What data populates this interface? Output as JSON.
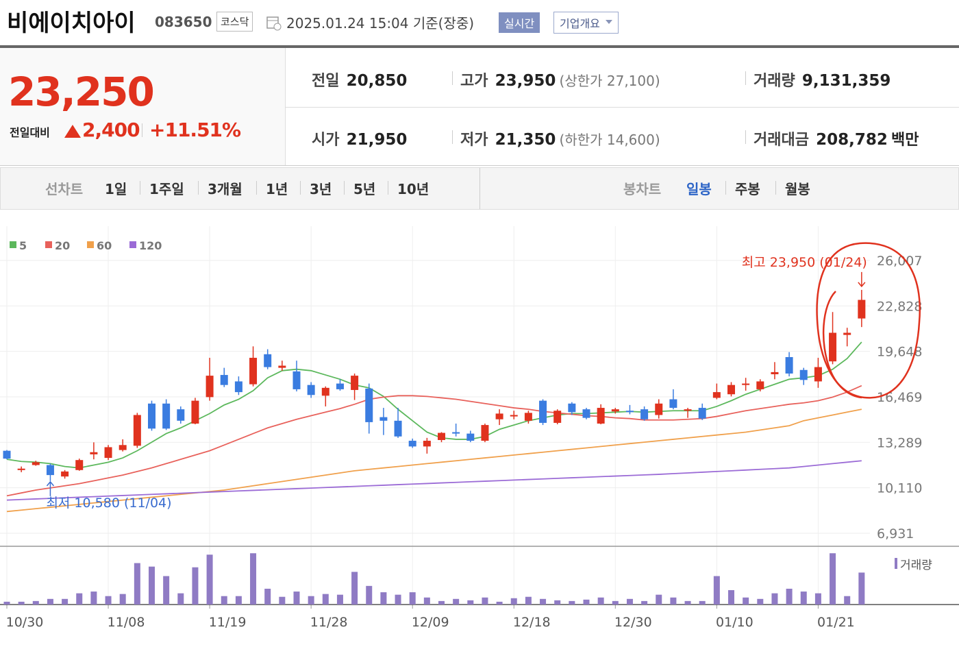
{
  "header": {
    "title": "비에이치아이",
    "code": "083650",
    "market": "코스닥",
    "timestamp": "2025.01.24 15:04 기준(장중)",
    "buttons": [
      "실시간",
      "기업개요"
    ]
  },
  "quote": {
    "price": "23,250",
    "change_label": "전일대비",
    "change": "2,400",
    "change_rate": "+11.51%"
  },
  "stats": [
    {
      "label": "전일",
      "value": "20,850"
    },
    {
      "label": "고가",
      "value": "23,950",
      "extra": "(상한가 27,100)"
    },
    {
      "label": "거래량",
      "value": "9,131,359"
    },
    {
      "label": "시가",
      "value": "21,950"
    },
    {
      "label": "저가",
      "value": "21,350",
      "extra": "(하한가 14,600)"
    },
    {
      "label": "거래대금",
      "value": "208,782",
      "unit": "백만"
    }
  ],
  "tabs": {
    "line_label": "선차트",
    "line_periods": [
      "1일",
      "1주일",
      "3개월",
      "1년",
      "3년",
      "5년",
      "10년"
    ],
    "candle_label": "봉차트",
    "candle_periods": [
      "일봉",
      "주봉",
      "월봉"
    ]
  },
  "chart_data": {
    "type": "candlestick",
    "categories": [
      "10/30",
      null,
      null,
      null,
      null,
      null,
      null,
      "11/08",
      null,
      null,
      null,
      null,
      null,
      null,
      "11/19",
      null,
      null,
      null,
      null,
      null,
      null,
      "11/28",
      null,
      null,
      null,
      null,
      null,
      null,
      "12/09",
      null,
      null,
      null,
      null,
      null,
      null,
      "12/18",
      null,
      null,
      null,
      null,
      null,
      null,
      "12/30",
      null,
      null,
      null,
      null,
      null,
      null,
      "01/10",
      null,
      null,
      null,
      null,
      null,
      null,
      "01/21",
      null,
      null,
      null
    ],
    "open": [
      12700,
      11350,
      11700,
      11700,
      10900,
      11350,
      12450,
      12200,
      12750,
      13050,
      16000,
      16000,
      15600,
      14600,
      16450,
      18000,
      17550,
      17350,
      19450,
      18500,
      18250,
      17300,
      16550,
      17400,
      16950,
      17050,
      15050,
      14800,
      13400,
      13000,
      13450,
      14000,
      13900,
      13400,
      14900,
      15100,
      14800,
      16200,
      14650,
      16000,
      15600,
      14600,
      15450,
      15500,
      15600,
      15200,
      16300,
      15500,
      15700,
      16400,
      16650,
      17300,
      17000,
      18050,
      19250,
      18350,
      17550,
      18950,
      20800,
      21950
    ],
    "high": [
      12750,
      11600,
      12000,
      11800,
      11350,
      12150,
      13289,
      13100,
      13500,
      15350,
      16200,
      16300,
      15800,
      16400,
      19200,
      18500,
      17900,
      20000,
      19800,
      19000,
      19000,
      17500,
      17200,
      17700,
      18100,
      17400,
      15700,
      15700,
      13550,
      13600,
      14000,
      14600,
      14100,
      14600,
      15600,
      15500,
      15500,
      16300,
      15600,
      16100,
      15700,
      15950,
      15700,
      15900,
      15800,
      16300,
      17000,
      15700,
      16000,
      17400,
      17500,
      17800,
      17700,
      18900,
      19600,
      18500,
      19200,
      22400,
      21300,
      23950
    ],
    "low": [
      12100,
      11200,
      11650,
      10580,
      10750,
      11300,
      12100,
      12050,
      12650,
      12900,
      14100,
      14150,
      14600,
      14550,
      16200,
      17150,
      16600,
      17200,
      18400,
      18300,
      16850,
      16400,
      15800,
      16900,
      16250,
      13900,
      13800,
      13600,
      12900,
      12500,
      13300,
      13700,
      13300,
      13300,
      14500,
      14900,
      14600,
      14500,
      14550,
      15200,
      14900,
      14550,
      15300,
      15250,
      14800,
      14950,
      15600,
      15000,
      14850,
      16300,
      16500,
      16900,
      16850,
      17700,
      17900,
      17300,
      17100,
      18750,
      20000,
      21350
    ],
    "close": [
      12150,
      11450,
      11900,
      11000,
      11250,
      12050,
      12600,
      12950,
      13100,
      15200,
      14250,
      14250,
      14800,
      16200,
      17950,
      17300,
      16800,
      19200,
      18550,
      18650,
      17000,
      16600,
      17100,
      17000,
      17950,
      14700,
      14800,
      13700,
      13000,
      13400,
      13950,
      13900,
      13400,
      14500,
      15300,
      15200,
      15350,
      14650,
      15500,
      15400,
      15000,
      15700,
      15600,
      15400,
      14900,
      16000,
      15700,
      15600,
      14950,
      16800,
      17300,
      17400,
      17550,
      18200,
      18100,
      17650,
      18550,
      20950,
      20950,
      23250
    ],
    "up_color": "#e0321e",
    "down_color": "#3a7ce0",
    "series": [
      {
        "name": "5",
        "color": "#5cb85c",
        "values": [
          12100,
          11950,
          11900,
          11800,
          11600,
          11500,
          11700,
          11900,
          12200,
          12700,
          13300,
          13900,
          14300,
          14800,
          15300,
          15900,
          16300,
          16900,
          17800,
          18300,
          18400,
          18300,
          18000,
          17700,
          17300,
          17100,
          16500,
          15600,
          14800,
          14000,
          13600,
          13500,
          13500,
          13700,
          14200,
          14500,
          14800,
          15000,
          15200,
          15300,
          15300,
          15350,
          15400,
          15450,
          15400,
          15450,
          15500,
          15500,
          15500,
          15800,
          16200,
          16650,
          17000,
          17350,
          17700,
          17800,
          17950,
          18400,
          19150,
          20300
        ]
      },
      {
        "name": "20",
        "color": "#e8615b",
        "values": [
          9550,
          9750,
          9950,
          10100,
          10250,
          10400,
          10600,
          10800,
          11000,
          11250,
          11500,
          11800,
          12100,
          12400,
          12700,
          13100,
          13500,
          13900,
          14300,
          14600,
          14900,
          15150,
          15400,
          15650,
          15950,
          16300,
          16450,
          16550,
          16550,
          16500,
          16400,
          16300,
          16150,
          16000,
          15850,
          15700,
          15600,
          15450,
          15350,
          15250,
          15150,
          15100,
          15000,
          14950,
          14850,
          14850,
          14850,
          14900,
          14950,
          15100,
          15300,
          15500,
          15650,
          15800,
          15950,
          16050,
          16200,
          16450,
          16800,
          17250
        ]
      },
      {
        "name": "60",
        "color": "#f0a04b",
        "values": [
          8450,
          8550,
          8650,
          8750,
          8850,
          8950,
          9050,
          9150,
          9250,
          9350,
          9450,
          9550,
          9650,
          9750,
          9850,
          9950,
          10100,
          10250,
          10400,
          10550,
          10700,
          10850,
          11000,
          11150,
          11300,
          11400,
          11500,
          11600,
          11700,
          11800,
          11900,
          12000,
          12100,
          12200,
          12300,
          12400,
          12500,
          12600,
          12700,
          12800,
          12900,
          13000,
          13100,
          13200,
          13300,
          13400,
          13500,
          13600,
          13700,
          13800,
          13900,
          14000,
          14150,
          14300,
          14450,
          14800,
          15000,
          15200,
          15400,
          15600
        ]
      },
      {
        "name": "120",
        "color": "#9b6bd6",
        "values": [
          9250,
          9290,
          9330,
          9370,
          9410,
          9450,
          9490,
          9530,
          9570,
          9610,
          9650,
          9690,
          9730,
          9770,
          9810,
          9850,
          9890,
          9930,
          9970,
          10010,
          10050,
          10090,
          10130,
          10170,
          10210,
          10250,
          10290,
          10330,
          10370,
          10410,
          10450,
          10490,
          10530,
          10570,
          10610,
          10650,
          10690,
          10730,
          10770,
          10810,
          10850,
          10890,
          10930,
          10970,
          11010,
          11050,
          11100,
          11150,
          11200,
          11250,
          11300,
          11350,
          11400,
          11450,
          11500,
          11600,
          11700,
          11800,
          11900,
          12000
        ]
      }
    ],
    "volume": {
      "name": "거래량",
      "color": "#8f7bc4",
      "values": [
        0.8,
        0.8,
        1.0,
        1.6,
        1.6,
        3.2,
        3.7,
        2.4,
        3.0,
        11.8,
        10.8,
        8.1,
        3.2,
        10.6,
        14.2,
        2.4,
        2.4,
        14.6,
        4.5,
        2.2,
        3.7,
        2.4,
        3.0,
        2.8,
        9.3,
        5.3,
        3.5,
        2.8,
        3.5,
        2.0,
        1.0,
        1.6,
        1.2,
        2.0,
        0.8,
        1.8,
        2.2,
        1.6,
        1.2,
        1.0,
        1.4,
        2.0,
        1.0,
        1.6,
        1.0,
        2.8,
        2.0,
        1.0,
        1.0,
        8.1,
        4.1,
        2.0,
        1.6,
        3.2,
        4.5,
        3.7,
        3.2,
        14.6,
        2.4,
        9.1
      ],
      "ylim": [
        0,
        16
      ]
    },
    "ylim": [
      6931,
      26007
    ],
    "yticks": [
      {
        "value": 26007,
        "label": "26,007"
      },
      {
        "value": 22828,
        "label": "22,828"
      },
      {
        "value": 19648,
        "label": "19,648"
      },
      {
        "value": 16469,
        "label": "16,469"
      },
      {
        "value": 13289,
        "label": "13,289"
      },
      {
        "value": 10110,
        "label": "10,110"
      },
      {
        "value": 6931,
        "label": "6,931"
      }
    ],
    "grid": true,
    "annotations": [
      {
        "text": "최고 23,950 (01/24)",
        "value": 23950,
        "index": 59
      },
      {
        "text": "최저 10,580 (11/04)",
        "value": 10580,
        "index": 3
      }
    ]
  }
}
